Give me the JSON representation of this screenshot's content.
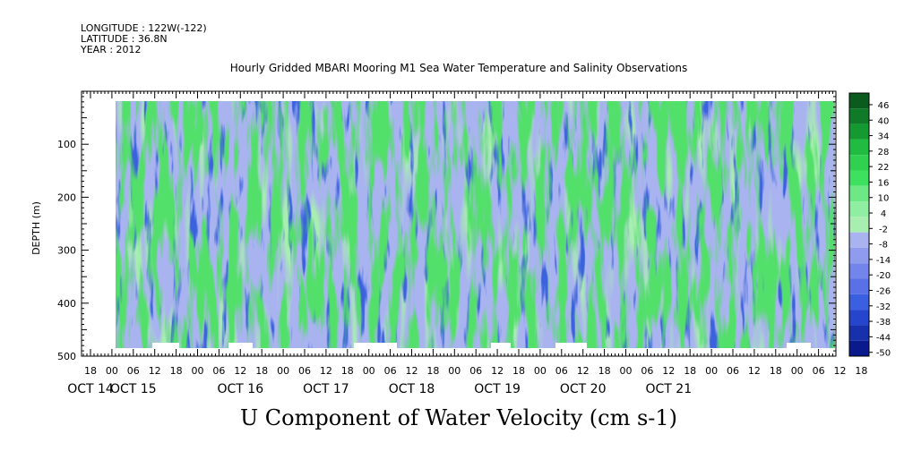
{
  "header": {
    "longitude": "LONGITUDE : 122W(-122)",
    "latitude": "LATITUDE : 36.8N",
    "year": "YEAR : 2012"
  },
  "chart_data": {
    "type": "heatmap",
    "title": "Hourly Gridded MBARI Mooring M1 Sea Water Temperature and Salinity Observations",
    "xlabel": "U Component of Water Velocity (cm s-1)",
    "ylabel": "DEPTH (m)",
    "ylim": [
      500,
      0
    ],
    "y_ticks": [
      100,
      200,
      300,
      400,
      500
    ],
    "x_hour_ticks": [
      "18",
      "00",
      "06",
      "12",
      "18",
      "00",
      "06",
      "12",
      "18",
      "00",
      "06",
      "12",
      "18",
      "00",
      "06",
      "12",
      "18",
      "00",
      "06",
      "12",
      "18",
      "00",
      "06",
      "12",
      "18",
      "00",
      "06",
      "12",
      "18",
      "00",
      "06",
      "12",
      "18",
      "00",
      "06",
      "12",
      "18"
    ],
    "x_day_labels": [
      {
        "label": "OCT 14",
        "hour_index": 0
      },
      {
        "label": "OCT 15",
        "hour_index": 2
      },
      {
        "label": "OCT 16",
        "hour_index": 7
      },
      {
        "label": "OCT 17",
        "hour_index": 11
      },
      {
        "label": "OCT 18",
        "hour_index": 15
      },
      {
        "label": "OCT 19",
        "hour_index": 19
      },
      {
        "label": "OCT 20",
        "hour_index": 23
      },
      {
        "label": "OCT 21",
        "hour_index": 27
      }
    ],
    "colorbar": {
      "labels": [
        "46",
        "40",
        "34",
        "28",
        "22",
        "16",
        "10",
        "4",
        "-2",
        "-8",
        "-14",
        "-20",
        "-26",
        "-32",
        "-38",
        "-44",
        "-50"
      ],
      "min": -50,
      "max": 46,
      "colors": {
        "strong_negative": "#0a1a8c",
        "negative": "#3a5fe0",
        "weak_negative": "#a9b3f0",
        "weak_positive": "#a8eeb0",
        "positive": "#3ee060",
        "strong_positive": "#0b5a1e"
      }
    }
  }
}
